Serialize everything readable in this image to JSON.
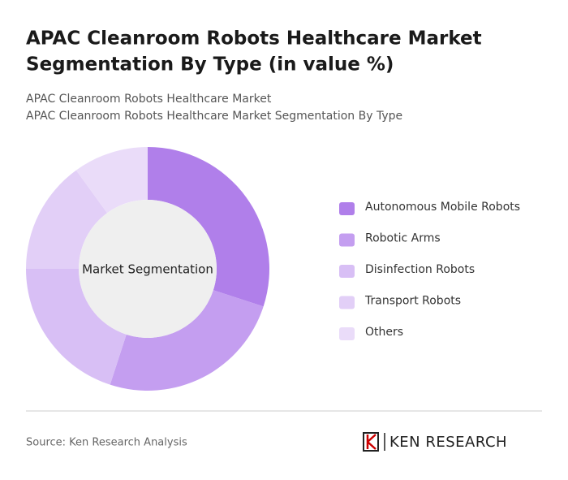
{
  "chart_data": {
    "type": "donut",
    "title": [
      "APAC Cleanroom Robots Healthcare Market",
      "Segmentation By Type (in value %)"
    ],
    "subtitle": [
      "APAC Cleanroom Robots Healthcare Market",
      "APAC Cleanroom Robots Healthcare Market Segmentation By Type"
    ],
    "center_label": "Market Segmentation",
    "categories": [
      "Autonomous Mobile Robots",
      "Robotic Arms",
      "Disinfection Robots",
      "Transport Robots",
      "Others"
    ],
    "values": [
      30,
      25,
      20,
      15,
      10
    ],
    "colors": [
      "#b07fea",
      "#c49ef0",
      "#d8bff5",
      "#e2cff7",
      "#eadcf9"
    ],
    "source": "Source: Ken Research Analysis",
    "logo": "KEN RESEARCH"
  }
}
